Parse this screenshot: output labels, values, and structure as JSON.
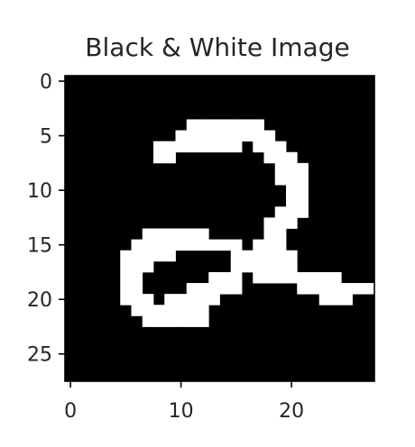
{
  "chart_data": {
    "type": "heatmap",
    "title": "Black & White Image",
    "colormap": "gray",
    "background_color": "#000000",
    "foreground_color": "#ffffff",
    "x_ticks": [
      "0",
      "10",
      "20"
    ],
    "y_ticks": [
      "0",
      "5",
      "10",
      "15",
      "20",
      "25"
    ],
    "xlim": [
      -0.5,
      27.5
    ],
    "ylim": [
      27.5,
      -0.5
    ],
    "grid": false,
    "rows": [
      "............................",
      "............................",
      "............................",
      "............................",
      "...........#######..........",
      "..........#########.........",
      "........########.###........",
      "........##........###.......",
      "...................###......",
      "...................###......",
      "....................##......",
      "....................##......",
      "...................###......",
      "..................###.......",
      ".......######.....##........",
      "......##########.###........",
      ".....#####.....######.......",
      ".....###.......######.......",
      ".....##......###.########...",
      ".....##....#####.....#######",
      ".....###.#####.........###..",
      "......#######...............",
      ".......######...............",
      "............................",
      "............................",
      "............................",
      "............................",
      "............................"
    ]
  }
}
